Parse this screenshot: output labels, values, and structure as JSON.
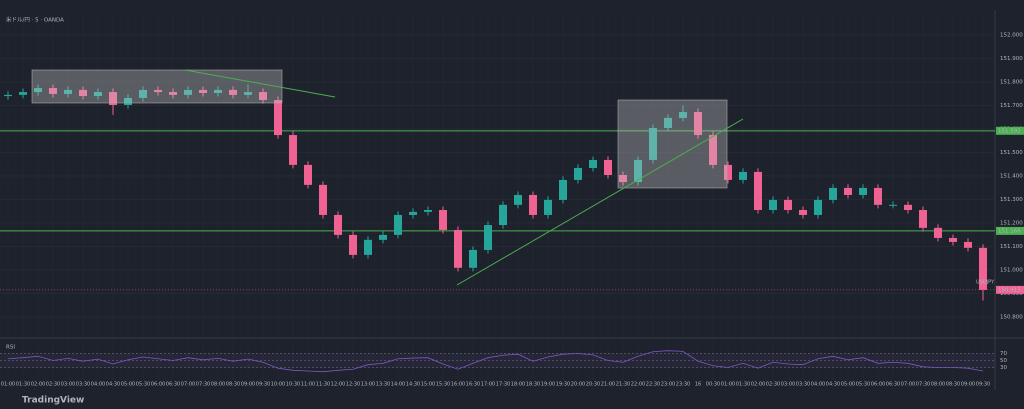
{
  "chart_data": {
    "type": "candlestick",
    "title": "米ドル/円 · 5 · OANDA",
    "categories": [
      "01:00",
      "01:30",
      "02:00",
      "02:30",
      "03:00",
      "03:30",
      "04:00",
      "04:30",
      "05:00",
      "05:30",
      "06:00",
      "06:30",
      "07:00",
      "07:30",
      "08:00",
      "08:30",
      "09:00",
      "09:30",
      "10:00",
      "10:30",
      "11:00",
      "11:30",
      "12:00",
      "12:30",
      "13:00",
      "13:30",
      "14:00",
      "14:30",
      "15:00",
      "15:30",
      "16:00",
      "16:30",
      "17:00",
      "17:30",
      "18:00",
      "18:30",
      "19:00",
      "19:30",
      "20:00",
      "20:30",
      "21:00",
      "21:30",
      "22:00",
      "22:30",
      "23:00",
      "23:30",
      "16",
      "00:30",
      "01:00",
      "01:30",
      "02:00",
      "02:30",
      "03:00",
      "03:30",
      "04:00",
      "04:30",
      "05:00",
      "05:30",
      "06:00",
      "06:30",
      "07:00",
      "07:30",
      "08:00",
      "08:30",
      "09:00",
      "09:30"
    ],
    "series": [
      {
        "name": "USDJPY",
        "up_color": "#26a69a",
        "down_color": "#f06292",
        "open": [
          151.74,
          151.745,
          151.757,
          151.774,
          151.749,
          151.766,
          151.74,
          151.757,
          151.702,
          151.732,
          151.766,
          151.757,
          151.745,
          151.766,
          151.753,
          151.766,
          151.745,
          151.757,
          151.723,
          151.574,
          151.447,
          151.362,
          151.234,
          151.149,
          151.064,
          151.128,
          151.149,
          151.234,
          151.247,
          151.255,
          151.17,
          151.009,
          151.085,
          151.191,
          151.277,
          151.319,
          151.234,
          151.298,
          151.383,
          151.434,
          151.468,
          151.404,
          151.374,
          151.468,
          151.604,
          151.647,
          151.672,
          151.574,
          151.447,
          151.383,
          151.417,
          151.255,
          151.298,
          151.255,
          151.234,
          151.298,
          151.349,
          151.319,
          151.349,
          151.277,
          151.277,
          151.255,
          151.179,
          151.136,
          151.119,
          151.094
        ],
        "high": [
          151.76,
          151.772,
          151.789,
          151.789,
          151.781,
          151.781,
          151.772,
          151.772,
          151.747,
          151.781,
          151.781,
          151.772,
          151.781,
          151.781,
          151.781,
          151.781,
          151.79,
          151.772,
          151.738,
          151.589,
          151.462,
          151.377,
          151.249,
          151.164,
          151.143,
          151.164,
          151.249,
          151.262,
          151.27,
          151.27,
          151.185,
          151.1,
          151.206,
          151.292,
          151.334,
          151.334,
          151.313,
          151.398,
          151.449,
          151.483,
          151.483,
          151.419,
          151.483,
          151.619,
          151.662,
          151.7,
          151.687,
          151.589,
          151.462,
          151.432,
          151.432,
          151.313,
          151.313,
          151.27,
          151.313,
          151.364,
          151.364,
          151.364,
          151.364,
          151.292,
          151.292,
          151.27,
          151.194,
          151.151,
          151.134,
          151.109
        ],
        "low": [
          151.725,
          151.73,
          151.742,
          151.734,
          151.734,
          151.725,
          151.725,
          151.66,
          151.687,
          151.717,
          151.742,
          151.73,
          151.73,
          151.738,
          151.738,
          151.73,
          151.73,
          151.708,
          151.559,
          151.432,
          151.347,
          151.219,
          151.134,
          151.049,
          151.049,
          151.113,
          151.134,
          151.219,
          151.232,
          151.155,
          150.994,
          150.994,
          151.07,
          151.176,
          151.262,
          151.219,
          151.219,
          151.283,
          151.368,
          151.419,
          151.389,
          151.359,
          151.359,
          151.453,
          151.589,
          151.632,
          151.559,
          151.432,
          151.368,
          151.368,
          151.24,
          151.24,
          151.24,
          151.219,
          151.219,
          151.283,
          151.304,
          151.304,
          151.262,
          151.262,
          151.24,
          151.164,
          151.121,
          151.104,
          151.079,
          150.87
        ],
        "close": [
          151.745,
          151.757,
          151.774,
          151.749,
          151.766,
          151.74,
          151.757,
          151.702,
          151.732,
          151.766,
          151.757,
          151.745,
          151.766,
          151.753,
          151.766,
          151.745,
          151.757,
          151.723,
          151.574,
          151.447,
          151.362,
          151.234,
          151.149,
          151.064,
          151.128,
          151.149,
          151.234,
          151.247,
          151.255,
          151.17,
          151.009,
          151.085,
          151.191,
          151.277,
          151.319,
          151.234,
          151.298,
          151.383,
          151.434,
          151.468,
          151.404,
          151.374,
          151.468,
          151.604,
          151.647,
          151.672,
          151.574,
          151.447,
          151.383,
          151.417,
          151.255,
          151.298,
          151.255,
          151.234,
          151.298,
          151.349,
          151.319,
          151.349,
          151.277,
          151.277,
          151.255,
          151.179,
          151.136,
          151.119,
          151.094,
          150.915
        ]
      }
    ],
    "hlines": [
      {
        "value": 151.592,
        "color": "#4caf50"
      },
      {
        "value": 151.166,
        "color": "#4caf50"
      }
    ],
    "ylim": [
      150.723,
      152.085
    ],
    "yticks": [
      {
        "value": 152.0,
        "label": "152.000"
      },
      {
        "value": 151.9,
        "label": "151.900"
      },
      {
        "value": 151.8,
        "label": "151.800"
      },
      {
        "value": 151.7,
        "label": "151.700"
      },
      {
        "value": 151.6,
        "label": "151.600"
      },
      {
        "value": 151.5,
        "label": "151.500"
      },
      {
        "value": 151.4,
        "label": "151.400"
      },
      {
        "value": 151.3,
        "label": "151.300"
      },
      {
        "value": 151.2,
        "label": "151.200"
      },
      {
        "value": 151.1,
        "label": "151.100"
      },
      {
        "value": 151.0,
        "label": "151.000"
      },
      {
        "value": 150.9,
        "label": "150.900"
      },
      {
        "value": 150.8,
        "label": "150.800"
      }
    ],
    "grid": true,
    "rsi": {
      "name": "RSI",
      "color": "#7e57c2",
      "ylim": [
        0,
        100
      ],
      "levels": [
        70,
        50,
        30
      ],
      "values": [
        55,
        58,
        62,
        50,
        56,
        48,
        54,
        40,
        52,
        60,
        55,
        50,
        58,
        52,
        56,
        48,
        54,
        45,
        28,
        22,
        20,
        18,
        22,
        25,
        38,
        42,
        55,
        57,
        58,
        40,
        25,
        42,
        58,
        65,
        68,
        48,
        60,
        68,
        70,
        66,
        50,
        45,
        62,
        75,
        78,
        76,
        48,
        35,
        30,
        42,
        28,
        45,
        40,
        38,
        55,
        62,
        52,
        58,
        42,
        45,
        42,
        32,
        30,
        30,
        28,
        20
      ]
    },
    "footer": "TradingView"
  }
}
